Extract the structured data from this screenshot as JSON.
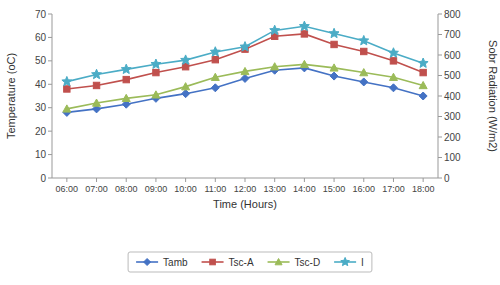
{
  "chart_data": {
    "type": "line",
    "xlabel": "Time (Hours)",
    "ylabel": "Temperature (oC)",
    "y2label": "Sobr Radiation (W/m2)",
    "categories": [
      "06:00",
      "07:00",
      "08:00",
      "09:00",
      "10:00",
      "11:00",
      "12:00",
      "13:00",
      "14:00",
      "15:00",
      "16:00",
      "17:00",
      "18:00"
    ],
    "series": [
      {
        "name": "Tamb",
        "color": "#4472C4",
        "marker": "diamond",
        "values": [
          28,
          29.5,
          31.5,
          34,
          36,
          38.5,
          42.5,
          46,
          47,
          43.5,
          41,
          38.5,
          35
        ]
      },
      {
        "name": "Tsc-A",
        "color": "#C0504D",
        "marker": "square",
        "values": [
          38,
          39.5,
          42,
          45,
          47.5,
          50.5,
          55,
          60.5,
          61.5,
          57,
          54,
          50,
          45
        ]
      },
      {
        "name": "Tsc-D",
        "color": "#9BBB59",
        "marker": "triangle",
        "values": [
          29.5,
          32,
          34,
          35.5,
          39,
          43,
          45.5,
          47.5,
          48.5,
          47,
          45,
          43,
          39.5
        ]
      },
      {
        "name": "I",
        "color": "#4BACC6",
        "marker": "star",
        "axis": "y2",
        "values": [
          470,
          505,
          530,
          555,
          575,
          615,
          640,
          720,
          740,
          705,
          670,
          610,
          560
        ]
      }
    ],
    "ylim": [
      0,
      70
    ],
    "yticks": [
      0,
      10,
      20,
      30,
      40,
      50,
      60,
      70
    ],
    "y2lim": [
      0,
      800
    ],
    "y2ticks": [
      0,
      100,
      200,
      300,
      400,
      500,
      600,
      700,
      800
    ],
    "grid": false,
    "legend": "bottom"
  }
}
